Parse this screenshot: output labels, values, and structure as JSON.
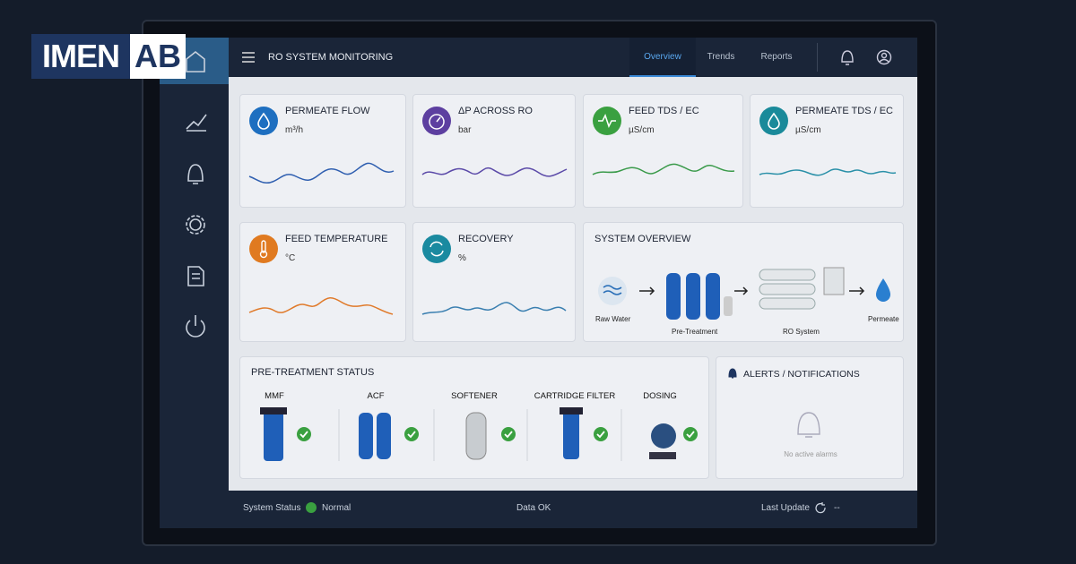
{
  "logo": {
    "left": "IMEN",
    "right": "AB"
  },
  "header": {
    "title": "RO SYSTEM MONITORING",
    "tabs": [
      "Overview",
      "Trends",
      "Reports"
    ]
  },
  "cards": [
    {
      "title": "PERMEATE FLOW",
      "unit": "m³/h"
    },
    {
      "title": "ΔP ACROSS RO",
      "unit": "bar"
    },
    {
      "title": "FEED TDS / EC",
      "unit": "µS/cm"
    },
    {
      "title": "PERMEATE TDS / EC",
      "unit": "µS/cm"
    },
    {
      "title": "FEED TEMPERATURE",
      "unit": "°C"
    },
    {
      "title": "RECOVERY",
      "unit": "%"
    }
  ],
  "system_overview": {
    "title": "SYSTEM OVERVIEW",
    "stages": [
      "Raw Water",
      "Pre-Treatment",
      "RO System",
      "Permeate"
    ]
  },
  "pretreatment": {
    "title": "PRE-TREATMENT STATUS",
    "items": [
      "MMF",
      "ACF",
      "SOFTENER",
      "CARTRIDGE FILTER",
      "DOSING"
    ]
  },
  "alerts": {
    "title": "ALERTS / NOTIFICATIONS",
    "message": "No active alarms"
  },
  "footer": {
    "status_label": "System Status",
    "status": "Normal",
    "data": "Data OK",
    "update_label": "Last Update",
    "update_value": "--"
  }
}
